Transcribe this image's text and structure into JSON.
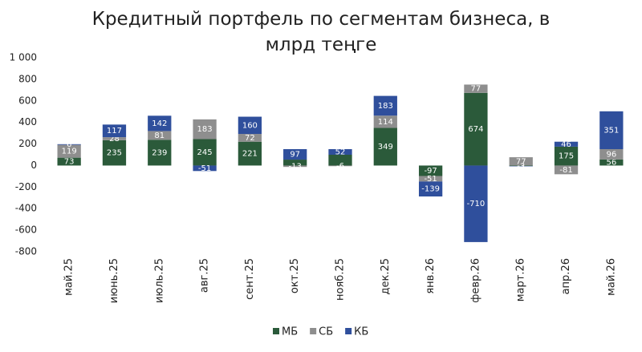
{
  "chart_data": {
    "type": "stacked_bar",
    "title": "Кредитный портфель по сегментам бизнеса, в млрд теңге",
    "categories": [
      "май.25",
      "июнь.25",
      "июль.25",
      "авг.25",
      "сент.25",
      "окт.25",
      "нояб.25",
      "дек.25",
      "янв.26",
      "февр.26",
      "март.26",
      "апр.26",
      "май.26"
    ],
    "series": [
      {
        "name": "МБ",
        "color": "#2b5a3a",
        "values": [
          73,
          235,
          239,
          245,
          221,
          55,
          100,
          349,
          -97,
          674,
          -5,
          175,
          56
        ],
        "value_labels": [
          "73",
          "235",
          "239",
          "245",
          "221",
          null,
          null,
          "349",
          "-97",
          "674",
          "-5",
          "175",
          "56"
        ]
      },
      {
        "name": "СБ",
        "color": "#8e8e8e",
        "values": [
          119,
          28,
          81,
          183,
          72,
          -13,
          -6,
          114,
          -51,
          77,
          77,
          -81,
          96
        ],
        "value_labels": [
          "119",
          "28",
          "81",
          "183",
          "72",
          "-13",
          "-6",
          "114",
          "-51",
          "77",
          "77",
          "-81",
          "96"
        ]
      },
      {
        "name": "КБ",
        "color": "#2f4f9c",
        "values": [
          6,
          117,
          142,
          -51,
          160,
          97,
          52,
          183,
          -139,
          -710,
          -3,
          46,
          351
        ],
        "value_labels": [
          "6",
          "117",
          "142",
          "-51",
          "160",
          "97",
          "52",
          "183",
          "-139",
          "-710",
          "-3",
          "46",
          "351"
        ]
      }
    ],
    "ylim": [
      -800,
      1000
    ],
    "yticks": [
      -800,
      -600,
      -400,
      -200,
      0,
      200,
      400,
      600,
      800,
      {
        "value": 1000,
        "label": "1 000"
      }
    ],
    "grid": false,
    "legend": "bottom"
  }
}
